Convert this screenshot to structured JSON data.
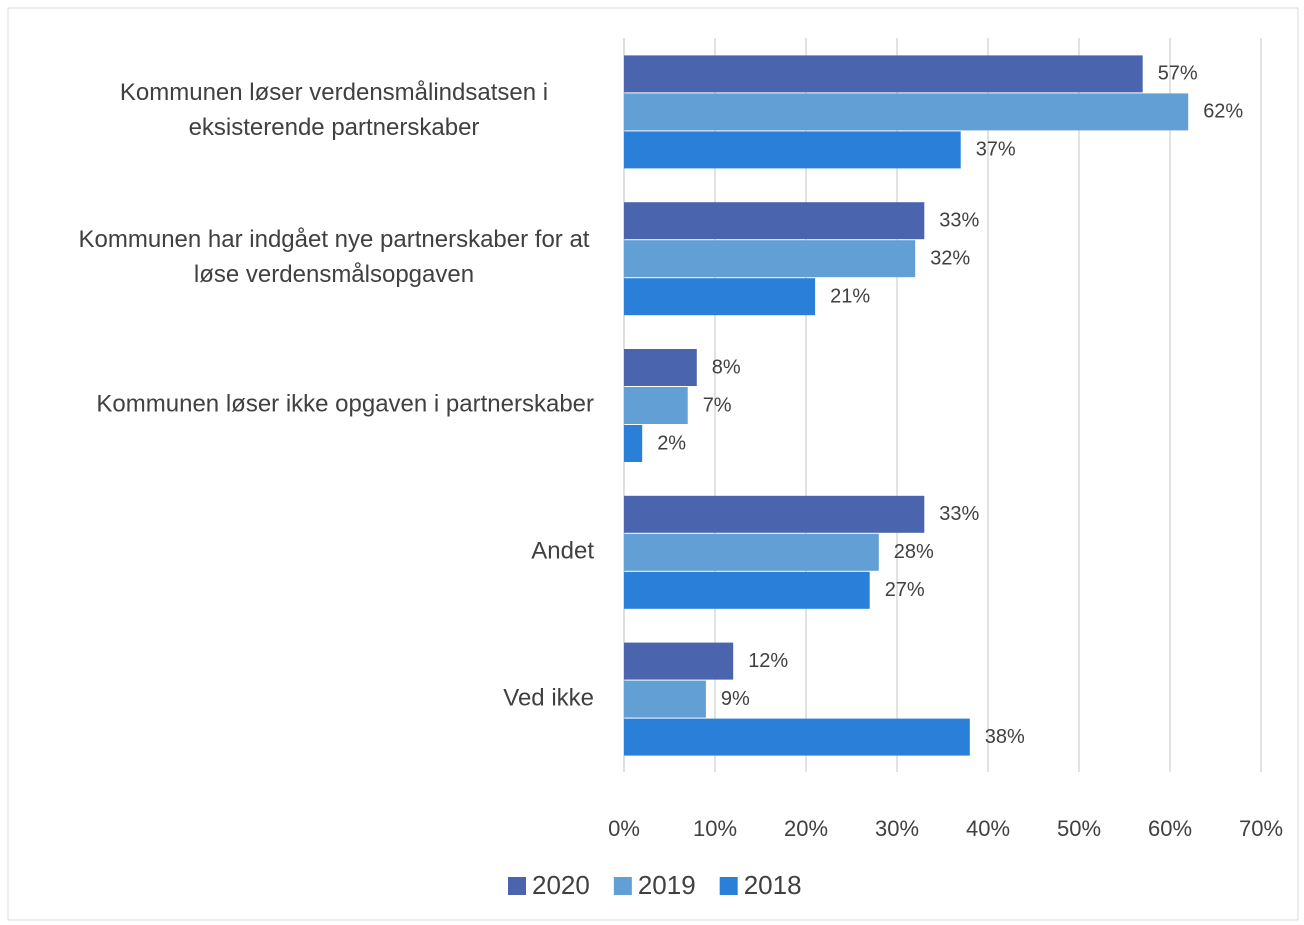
{
  "chart_data": {
    "type": "hbar",
    "categories": [
      "Kommunen løser verdensmålindsatsen i eksisterende partnerskaber",
      "Kommunen har indgået nye partnerskaber for at løse verdensmålsopgaven",
      "Kommunen løser ikke opgaven i partnerskaber",
      "Andet",
      "Ved ikke"
    ],
    "series": [
      {
        "name": "2020",
        "color": "#4a65ad",
        "values": [
          57,
          33,
          8,
          33,
          12
        ],
        "value_labels": [
          "57%",
          "33%",
          "8%",
          "33%",
          "12%"
        ]
      },
      {
        "name": "2019",
        "color": "#619fd4",
        "values": [
          62,
          32,
          7,
          28,
          9
        ],
        "value_labels": [
          "62%",
          "32%",
          "7%",
          "28%",
          "9%"
        ]
      },
      {
        "name": "2018",
        "color": "#2a7fd8",
        "values": [
          37,
          21,
          2,
          27,
          38
        ],
        "value_labels": [
          "37%",
          "21%",
          "2%",
          "27%",
          "38%"
        ]
      }
    ],
    "xlim": [
      0,
      70
    ],
    "xticks": [
      {
        "value": 0,
        "label": "0%"
      },
      {
        "value": 10,
        "label": "10%"
      },
      {
        "value": 20,
        "label": "20%"
      },
      {
        "value": 30,
        "label": "30%"
      },
      {
        "value": 40,
        "label": "40%"
      },
      {
        "value": 50,
        "label": "50%"
      },
      {
        "value": 60,
        "label": "60%"
      },
      {
        "value": 70,
        "label": "70%"
      }
    ],
    "grid": true,
    "legend": "bottom"
  }
}
